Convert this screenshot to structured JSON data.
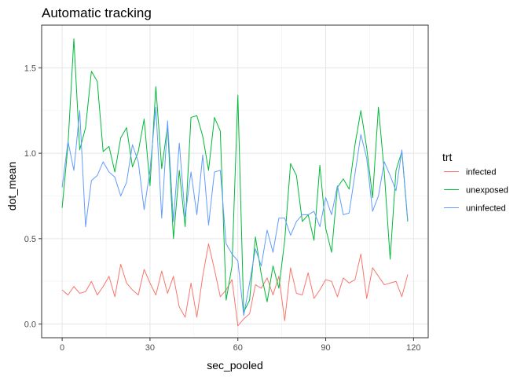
{
  "chart_data": {
    "type": "line",
    "title": "Automatic tracking",
    "xlabel": "sec_pooled",
    "ylabel": "dot_mean",
    "xlim": [
      -7,
      125
    ],
    "ylim": [
      -0.08,
      1.75
    ],
    "x_ticks": [
      0,
      30,
      60,
      90,
      120
    ],
    "y_ticks": [
      0.0,
      0.5,
      1.0,
      1.5
    ],
    "x_tick_labels": [
      "0",
      "30",
      "60",
      "90",
      "120"
    ],
    "y_tick_labels": [
      "0.0",
      "0.5",
      "1.0",
      "1.5"
    ],
    "grid": true,
    "legend_title": "trt",
    "legend_position": "right",
    "x": [
      0,
      2,
      4,
      6,
      8,
      10,
      12,
      14,
      16,
      18,
      20,
      22,
      24,
      26,
      28,
      30,
      32,
      34,
      36,
      38,
      40,
      42,
      44,
      46,
      48,
      50,
      52,
      54,
      56,
      58,
      60,
      62,
      64,
      66,
      68,
      70,
      72,
      74,
      76,
      78,
      80,
      82,
      84,
      86,
      88,
      90,
      92,
      94,
      96,
      98,
      100,
      102,
      104,
      106,
      108,
      110,
      112,
      114,
      116,
      118
    ],
    "series": [
      {
        "name": "infected",
        "color": "#F8766D",
        "values": [
          0.2,
          0.17,
          0.22,
          0.18,
          0.19,
          0.25,
          0.17,
          0.22,
          0.28,
          0.16,
          0.35,
          0.24,
          0.2,
          0.17,
          0.32,
          0.24,
          0.17,
          0.31,
          0.18,
          0.28,
          0.1,
          0.04,
          0.24,
          0.04,
          0.28,
          0.47,
          0.32,
          0.16,
          0.2,
          0.26,
          -0.01,
          0.03,
          0.06,
          0.23,
          0.21,
          0.27,
          0.17,
          0.28,
          0.02,
          0.33,
          0.18,
          0.17,
          0.3,
          0.15,
          0.2,
          0.26,
          0.25,
          0.16,
          0.27,
          0.24,
          0.26,
          0.41,
          0.15,
          0.33,
          0.28,
          0.23,
          0.24,
          0.25,
          0.16,
          0.29
        ]
      },
      {
        "name": "unexposed",
        "color": "#00BA38",
        "values": [
          0.68,
          1.05,
          1.67,
          1.02,
          1.15,
          1.48,
          1.42,
          1.01,
          1.04,
          0.89,
          1.09,
          1.15,
          0.92,
          1.01,
          1.2,
          0.81,
          1.39,
          0.91,
          1.16,
          0.5,
          0.9,
          0.57,
          1.21,
          1.22,
          1.1,
          0.9,
          1.21,
          1.13,
          0.14,
          0.34,
          1.34,
          0.07,
          0.14,
          0.51,
          0.29,
          0.13,
          0.34,
          0.21,
          0.49,
          0.94,
          0.87,
          0.6,
          0.64,
          0.49,
          0.93,
          0.56,
          0.42,
          0.8,
          0.85,
          0.79,
          1.05,
          1.25,
          1.03,
          0.74,
          1.27,
          0.89,
          0.38,
          0.9,
          1.01,
          0.6
        ]
      },
      {
        "name": "uninfected",
        "color": "#619CFF",
        "values": [
          0.8,
          1.07,
          0.9,
          1.25,
          0.57,
          0.84,
          0.87,
          0.95,
          0.89,
          0.86,
          0.75,
          0.83,
          1.05,
          0.95,
          0.67,
          0.9,
          1.27,
          0.62,
          1.19,
          0.6,
          1.06,
          0.63,
          0.89,
          0.64,
          0.99,
          0.58,
          0.89,
          0.9,
          0.47,
          0.41,
          0.37,
          0.05,
          0.24,
          0.44,
          0.34,
          0.55,
          0.42,
          0.62,
          0.62,
          0.52,
          0.6,
          0.64,
          0.64,
          0.66,
          0.57,
          0.74,
          0.64,
          0.81,
          0.64,
          0.65,
          0.88,
          1.11,
          0.97,
          0.66,
          0.75,
          0.95,
          0.87,
          0.78,
          1.02,
          0.61
        ]
      }
    ]
  }
}
